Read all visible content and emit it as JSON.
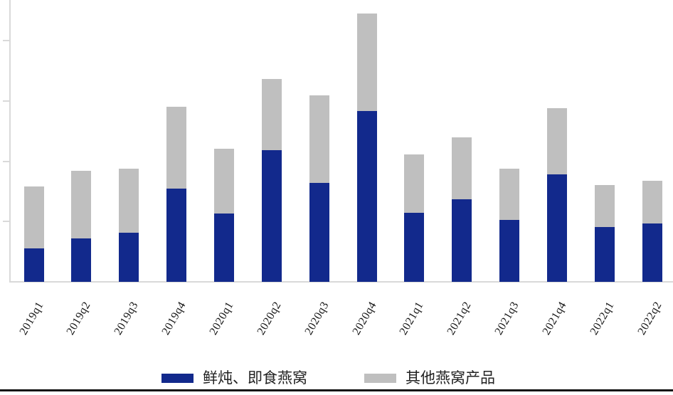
{
  "chart_data": {
    "type": "bar",
    "stacked": true,
    "title": "",
    "xlabel": "",
    "ylabel": "",
    "categories": [
      "2019q1",
      "2019q2",
      "2019q3",
      "2019q4",
      "2020q1",
      "2020q2",
      "2020q3",
      "2020q4",
      "2021q1",
      "2021q2",
      "2021q3",
      "2021q4",
      "2022q1",
      "2022q2"
    ],
    "series": [
      {
        "name": "鲜炖、即食燕窝",
        "color": "#12298c",
        "values": [
          0.56,
          0.72,
          0.81,
          1.55,
          1.13,
          2.19,
          1.64,
          2.83,
          1.14,
          1.37,
          1.03,
          1.78,
          0.91,
          0.97
        ]
      },
      {
        "name": "其他燕窝产品",
        "color": "#bfbfbf",
        "values": [
          1.02,
          1.12,
          1.07,
          1.35,
          1.08,
          1.17,
          1.45,
          1.62,
          0.97,
          1.03,
          0.85,
          1.1,
          0.7,
          0.71
        ]
      }
    ],
    "ylim": [
      0,
      4.68
    ],
    "y_ticks": [
      1,
      2,
      3,
      4
    ],
    "y_tick_labels_visible": false,
    "grid": false,
    "legend_position": "bottom",
    "axis_color": "#d9d9d9",
    "label_color": "#161616"
  },
  "page": {
    "bottom_rule_color": "#111111"
  }
}
